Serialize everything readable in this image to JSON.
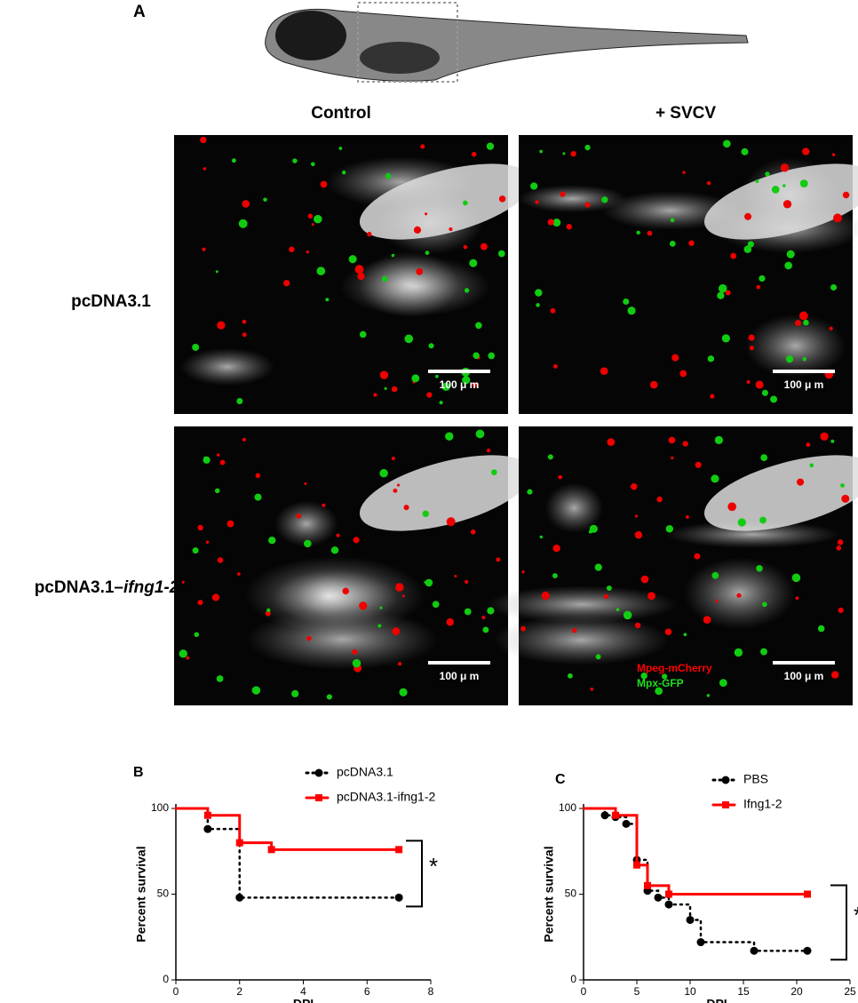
{
  "figure": {
    "panel_a": "A",
    "col_headers": [
      "Control",
      "+ SVCV"
    ],
    "row_headers": [
      [
        "pcDNA3.1"
      ],
      [
        "pcDNA3.1–",
        "ifng1-2"
      ]
    ],
    "scale_bars": [
      "100 μ m",
      "100 μ m",
      "100 μ m",
      "100 μ m"
    ],
    "image_legend": [
      "Mpeg-mCherry",
      "Mpx-GFP"
    ]
  },
  "chart_data": [
    {
      "type": "step",
      "panel_label": "B",
      "ylabel": "Percent survival",
      "xlabel": "DPI",
      "annotation": "*",
      "xlim": [
        0,
        8
      ],
      "xticks": [
        0,
        2,
        4,
        6,
        8
      ],
      "ylim": [
        0,
        100
      ],
      "yticks": [
        0,
        50,
        100
      ],
      "series": [
        {
          "name": "pcDNA3.1",
          "color": "#000000",
          "marker": "circle",
          "dash": true,
          "x": [
            0,
            1,
            2,
            7
          ],
          "values": [
            100,
            88,
            48,
            48
          ]
        },
        {
          "name": "pcDNA3.1-ifng1-2",
          "color": "#ff0000",
          "marker": "square",
          "dash": false,
          "x": [
            0,
            1,
            2,
            3,
            7
          ],
          "values": [
            100,
            96,
            80,
            76,
            76
          ]
        }
      ]
    },
    {
      "type": "step",
      "panel_label": "C",
      "ylabel": "Percent survival",
      "xlabel": "DPI",
      "annotation": "*",
      "xlim": [
        0,
        25
      ],
      "xticks": [
        0,
        5,
        10,
        15,
        20,
        25
      ],
      "ylim": [
        0,
        100
      ],
      "yticks": [
        0,
        50,
        100
      ],
      "series": [
        {
          "name": "PBS",
          "color": "#000000",
          "marker": "circle",
          "dash": true,
          "x": [
            0,
            2,
            3,
            4,
            5,
            6,
            7,
            8,
            10,
            11,
            16,
            21
          ],
          "values": [
            100,
            96,
            95,
            91,
            70,
            52,
            48,
            44,
            35,
            22,
            17,
            17
          ]
        },
        {
          "name": "Ifng1-2",
          "color": "#ff0000",
          "marker": "square",
          "dash": false,
          "x": [
            0,
            3,
            5,
            6,
            8,
            21
          ],
          "values": [
            100,
            96,
            67,
            55,
            50,
            50
          ]
        }
      ]
    }
  ]
}
